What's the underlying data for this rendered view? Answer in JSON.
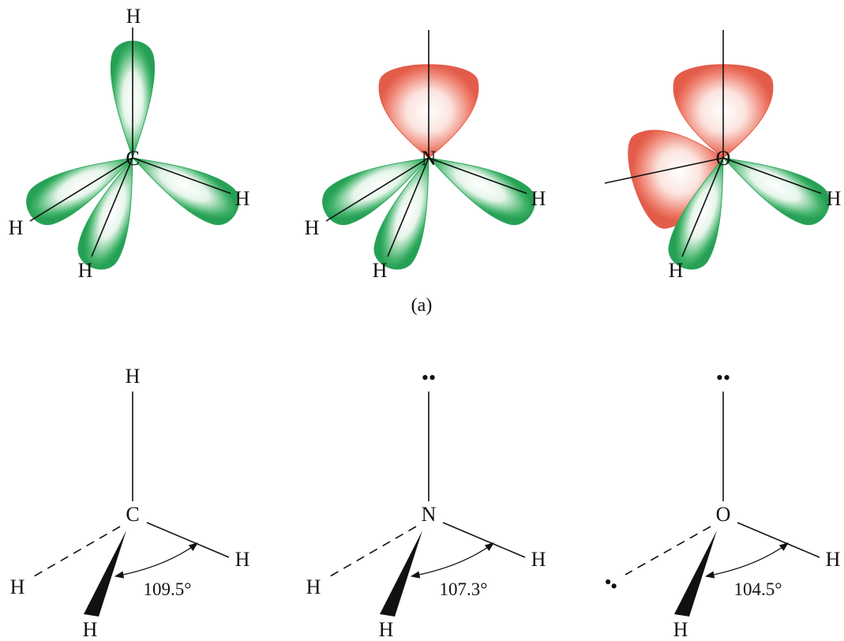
{
  "figure": {
    "panel_label": "(a)",
    "top_row": [
      {
        "center": "C",
        "substituents": [
          "H",
          "H",
          "H",
          "H"
        ],
        "lone_pair_lobes": 0
      },
      {
        "center": "N",
        "substituents": [
          "H",
          "H",
          "H"
        ],
        "lone_pair_lobes": 1
      },
      {
        "center": "O",
        "substituents": [
          "H",
          "H"
        ],
        "lone_pair_lobes": 2
      }
    ],
    "bottom_row": [
      {
        "center": "C",
        "top": "H",
        "right": "H",
        "left": "H",
        "wedge": "H",
        "angle": "109.5°"
      },
      {
        "center": "N",
        "top": "••",
        "right": "H",
        "left": "H",
        "wedge": "H",
        "angle": "107.3°"
      },
      {
        "center": "O",
        "top": "••",
        "right": "H",
        "left": "••",
        "wedge": "H",
        "angle": "104.5°"
      }
    ],
    "colors": {
      "bonding_orbital": "#2aa65a",
      "lone_pair_orbital": "#ec6a58",
      "lines": "#111111"
    }
  }
}
